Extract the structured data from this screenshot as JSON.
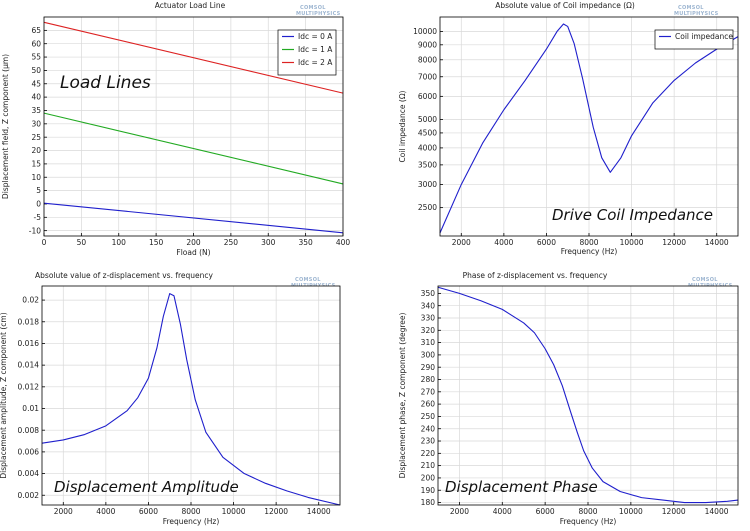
{
  "watermark": {
    "line1": "COMSOL",
    "line2": "MULTIPHYSICS"
  },
  "colors": {
    "blue": "#1f1fcc",
    "green": "#22aa22",
    "red": "#dd2222",
    "grid": "#d9d9d9",
    "axis": "#000000"
  },
  "chart_data": [
    {
      "type": "line",
      "title": "Actuator Load Line",
      "xlabel": "Fload (N)",
      "ylabel": "Displacement field, Z component (µm)",
      "overlay": "Load Lines",
      "xlim": [
        0,
        400
      ],
      "ylim": [
        -12,
        70
      ],
      "xticks": [
        0,
        50,
        100,
        150,
        200,
        250,
        300,
        350,
        400
      ],
      "yticks": [
        -10,
        -5,
        0,
        5,
        10,
        15,
        20,
        25,
        30,
        35,
        40,
        45,
        50,
        55,
        60,
        65
      ],
      "grid": true,
      "legend_position": "top-right",
      "series": [
        {
          "name": "Idc = 0 A",
          "color": "#1f1fcc",
          "x": [
            0,
            400
          ],
          "y": [
            0.3,
            -10.8
          ]
        },
        {
          "name": "Idc = 1 A",
          "color": "#22aa22",
          "x": [
            0,
            400
          ],
          "y": [
            34,
            7.5
          ]
        },
        {
          "name": "Idc = 2 A",
          "color": "#dd2222",
          "x": [
            0,
            400
          ],
          "y": [
            68,
            41.5
          ]
        }
      ]
    },
    {
      "type": "line",
      "title": "Absolute value of Coil impedance (Ω)",
      "xlabel": "Frequency (Hz)",
      "ylabel": "Coil impedance (Ω)",
      "overlay": "Drive Coil Impedance",
      "yscale": "log",
      "xlim": [
        1000,
        15000
      ],
      "ylim": [
        2000,
        11200
      ],
      "xticks": [
        2000,
        4000,
        6000,
        8000,
        10000,
        12000,
        14000
      ],
      "yticks": [
        2500,
        3000,
        3500,
        4000,
        4500,
        5000,
        6000,
        7000,
        8000,
        9000,
        10000
      ],
      "grid": true,
      "legend_position": "top-right",
      "series": [
        {
          "name": "Coil impedance",
          "color": "#1f1fcc",
          "x": [
            1000,
            2000,
            3000,
            4000,
            5000,
            6000,
            6500,
            6800,
            7000,
            7300,
            7700,
            8200,
            8600,
            9000,
            9500,
            10000,
            11000,
            12000,
            13000,
            14000,
            15000
          ],
          "y": [
            2050,
            3000,
            4150,
            5400,
            6800,
            8700,
            10000,
            10600,
            10400,
            9100,
            6900,
            4700,
            3700,
            3300,
            3700,
            4400,
            5700,
            6800,
            7800,
            8700,
            9600
          ]
        }
      ]
    },
    {
      "type": "line",
      "title": "Absolute value of z-displacement vs. frequency",
      "xlabel": "Frequency (Hz)",
      "ylabel": "Displacement amplitude, Z component (cm)",
      "overlay": "Displacement Amplitude",
      "xlim": [
        1000,
        15000
      ],
      "ylim": [
        0.0011,
        0.0213
      ],
      "xticks": [
        2000,
        4000,
        6000,
        8000,
        10000,
        12000,
        14000
      ],
      "yticks": [
        0.002,
        0.004,
        0.006,
        0.008,
        0.01,
        0.012,
        0.014,
        0.016,
        0.018,
        0.02
      ],
      "ytick_labels": [
        "0.002",
        "0.004",
        "0.006",
        "0.008",
        "0.01",
        "0.012",
        "0.014",
        "0.016",
        "0.018",
        "0.02"
      ],
      "grid": true,
      "series": [
        {
          "color": "#1f1fcc",
          "x": [
            1000,
            2000,
            3000,
            4000,
            5000,
            5500,
            6000,
            6400,
            6700,
            7000,
            7200,
            7500,
            7800,
            8200,
            8700,
            9500,
            10500,
            11500,
            12500,
            13500,
            15000
          ],
          "y": [
            0.0068,
            0.0071,
            0.0076,
            0.0084,
            0.0098,
            0.011,
            0.0128,
            0.0156,
            0.0185,
            0.0206,
            0.0204,
            0.0178,
            0.0145,
            0.0108,
            0.0078,
            0.0055,
            0.004,
            0.0031,
            0.0024,
            0.0018,
            0.0011
          ]
        }
      ]
    },
    {
      "type": "line",
      "title": "Phase of z-displacement vs. frequency",
      "xlabel": "Frequency (Hz)",
      "ylabel": "Displacement phase, Z component (degree)",
      "overlay": "Displacement Phase",
      "xlim": [
        1000,
        15000
      ],
      "ylim": [
        178,
        356
      ],
      "xticks": [
        2000,
        4000,
        6000,
        8000,
        10000,
        12000,
        14000
      ],
      "yticks": [
        180,
        190,
        200,
        210,
        220,
        230,
        240,
        250,
        260,
        270,
        280,
        290,
        300,
        310,
        320,
        330,
        340,
        350
      ],
      "grid": true,
      "series": [
        {
          "color": "#1f1fcc",
          "x": [
            1000,
            2000,
            3000,
            4000,
            5000,
            5500,
            6000,
            6400,
            6800,
            7000,
            7200,
            7500,
            7800,
            8200,
            8700,
            9500,
            10500,
            11500,
            12500,
            13500,
            14500,
            15000
          ],
          "y": [
            355,
            350,
            344,
            337,
            326,
            318,
            305,
            292,
            275,
            264,
            253,
            237,
            222,
            208,
            197,
            189,
            184,
            182,
            180,
            180,
            181,
            182
          ]
        }
      ]
    }
  ]
}
